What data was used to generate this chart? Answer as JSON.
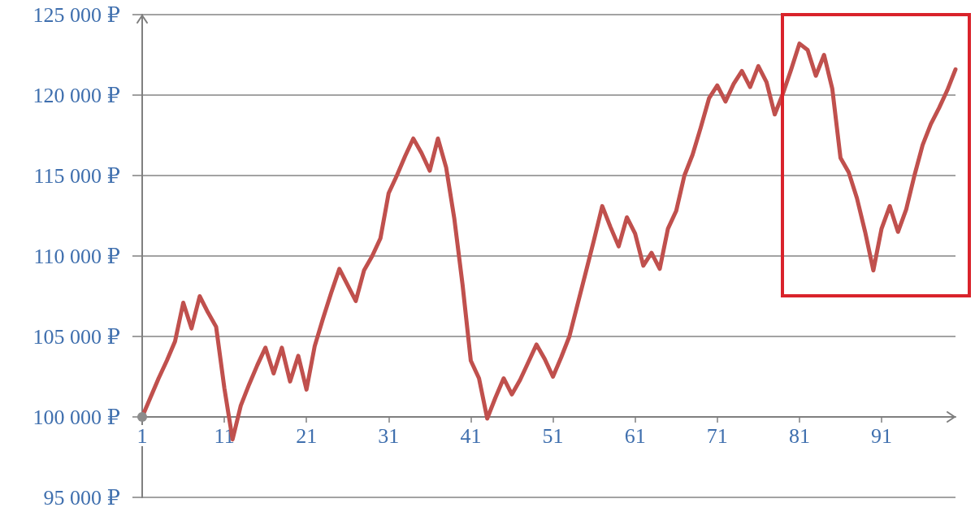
{
  "chart_data": {
    "type": "line",
    "x": [
      1,
      2,
      3,
      4,
      5,
      6,
      7,
      8,
      9,
      10,
      11,
      12,
      13,
      14,
      15,
      16,
      17,
      18,
      19,
      20,
      21,
      22,
      23,
      24,
      25,
      26,
      27,
      28,
      29,
      30,
      31,
      32,
      33,
      34,
      35,
      36,
      37,
      38,
      39,
      40,
      41,
      42,
      43,
      44,
      45,
      46,
      47,
      48,
      49,
      50,
      51,
      52,
      53,
      54,
      55,
      56,
      57,
      58,
      59,
      60,
      61,
      62,
      63,
      64,
      65,
      66,
      67,
      68,
      69,
      70,
      71,
      72,
      73,
      74,
      75,
      76,
      77,
      78,
      79,
      80,
      81,
      82,
      83,
      84,
      85,
      86,
      87,
      88,
      89,
      90,
      91,
      92,
      93,
      94,
      95,
      96,
      97,
      98,
      99,
      100
    ],
    "series": [
      {
        "color": "#c0504d",
        "values": [
          100000,
          101200,
          102400,
          103500,
          104700,
          107100,
          105500,
          107500,
          106500,
          105600,
          101800,
          98600,
          100700,
          102000,
          103200,
          104300,
          102700,
          104300,
          102200,
          103800,
          101700,
          104400,
          106100,
          107700,
          109200,
          108200,
          107200,
          109100,
          110000,
          111100,
          113900,
          115000,
          116200,
          117300,
          116400,
          115300,
          117300,
          115500,
          112300,
          108200,
          103500,
          102400,
          99900,
          101200,
          102400,
          101400,
          102300,
          103400,
          104500,
          103600,
          102500,
          103700,
          105000,
          107000,
          109000,
          111000,
          113100,
          111800,
          110600,
          112400,
          111400,
          109400,
          110200,
          109200,
          111700,
          112800,
          115000,
          116300,
          118000,
          119800,
          120600,
          119600,
          120700,
          121500,
          120500,
          121800,
          120800,
          118800,
          120100,
          121600,
          123200,
          122800,
          121200,
          122500,
          120400,
          116100,
          115200,
          113600,
          111500,
          109100,
          111700,
          113100,
          111500,
          112900,
          115000,
          116900,
          118200,
          119200,
          120300,
          121600
        ]
      },
      {
        "type": "scatter",
        "x": [
          1
        ],
        "values": [
          100000
        ],
        "color": "#8c8c8c",
        "marker": "circle"
      }
    ],
    "xlim": [
      1,
      100
    ],
    "xticks": [
      1,
      11,
      21,
      31,
      41,
      51,
      61,
      71,
      81,
      91
    ],
    "ylim": [
      95000,
      125000
    ],
    "yticks": [
      {
        "value": 95000,
        "label": "95 000 ₽"
      },
      {
        "value": 100000,
        "label": "100 000 ₽"
      },
      {
        "value": 105000,
        "label": "105 000 ₽"
      },
      {
        "value": 110000,
        "label": "110 000 ₽"
      },
      {
        "value": 115000,
        "label": "115 000 ₽"
      },
      {
        "value": 120000,
        "label": "120 000 ₽"
      },
      {
        "value": 125000,
        "label": "125 000 ₽"
      }
    ],
    "grid": "y",
    "marker": "none"
  }
}
